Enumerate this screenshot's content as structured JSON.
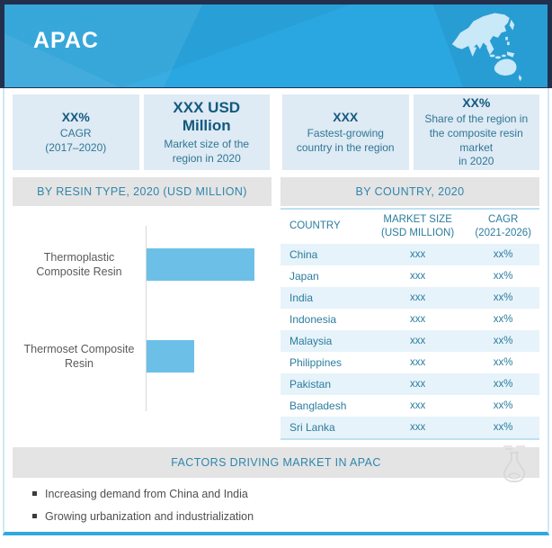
{
  "banner": {
    "title": "APAC",
    "bg_color": "#2AA7E0",
    "frame_color": "#22304D",
    "map_fill": "#C9E8F8"
  },
  "stats": [
    {
      "value": "XX%",
      "desc": "CAGR\n(2017–2020)"
    },
    {
      "value": "XXX USD Million",
      "desc": "Market size of the\nregion in 2020"
    },
    {
      "value": "XXX",
      "desc": "Fastest-growing\ncountry in the region"
    },
    {
      "value": "XX%",
      "desc": "Share of the region in\nthe composite resin market\nin 2020"
    }
  ],
  "chart_data": [
    {
      "type": "bar",
      "orientation": "horizontal",
      "title": "BY RESIN TYPE, 2020 (USD MILLION)",
      "categories": [
        "Thermoplastic Composite Resin",
        "Thermoset Composite Resin"
      ],
      "values": [
        121,
        54
      ],
      "values_note": "data labels redacted in source (shown as xxx); values are relative bar lengths",
      "xlim": [
        0,
        140
      ],
      "bar_color": "#6CC0E8",
      "grid": false,
      "legend": false
    },
    {
      "type": "table",
      "title": "BY COUNTRY, 2020",
      "columns": [
        "COUNTRY",
        "MARKET SIZE\n(USD MILLION)",
        "CAGR\n(2021-2026)"
      ],
      "rows": [
        [
          "China",
          "xxx",
          "xx%"
        ],
        [
          "Japan",
          "xxx",
          "xx%"
        ],
        [
          "India",
          "xxx",
          "xx%"
        ],
        [
          "Indonesia",
          "xxx",
          "xx%"
        ],
        [
          "Malaysia",
          "xxx",
          "xx%"
        ],
        [
          "Philippines",
          "xxx",
          "xx%"
        ],
        [
          "Pakistan",
          "xxx",
          "xx%"
        ],
        [
          "Bangladesh",
          "xxx",
          "xx%"
        ],
        [
          "Sri Lanka",
          "xxx",
          "xx%"
        ]
      ]
    }
  ],
  "factors": {
    "header": "FACTORS DRIVING MARKET IN APAC",
    "items": [
      "Increasing demand from China and India",
      "Growing urbanization and industrialization"
    ]
  },
  "colors": {
    "accent_blue": "#2AA7E0",
    "navy_frame": "#22304D",
    "bar_fill": "#6CC0E8",
    "teal_text": "#2B7C9E",
    "stat_box_bg": "#DEEAF4",
    "section_header_bg": "#E4E4E4",
    "alt_row_bg": "#E7F3FA",
    "table_border": "#BFE0F2"
  }
}
